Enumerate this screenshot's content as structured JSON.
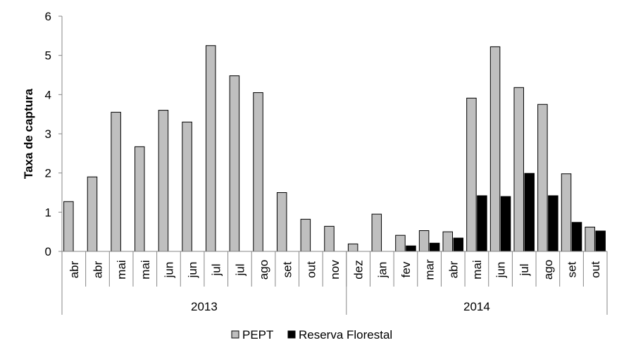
{
  "chart_data": {
    "type": "bar",
    "ylabel": "Taxa de captura",
    "ylim": [
      0,
      6
    ],
    "yticks": [
      0,
      1,
      2,
      3,
      4,
      5,
      6
    ],
    "grid": false,
    "legend_position": "bottom",
    "categories": [
      "abr",
      "abr",
      "mai",
      "mai",
      "jun",
      "jun",
      "jul",
      "jul",
      "ago",
      "set",
      "out",
      "nov",
      "dez",
      "jan",
      "fev",
      "mar",
      "abr",
      "mai",
      "jun",
      "jul",
      "ago",
      "set",
      "out"
    ],
    "groups": [
      {
        "label": "2013",
        "start": 0,
        "end": 11
      },
      {
        "label": "2014",
        "start": 12,
        "end": 22
      }
    ],
    "series": [
      {
        "name": "PEPT",
        "color": "#bfbfbf",
        "values": [
          1.27,
          1.9,
          3.55,
          2.67,
          3.6,
          3.3,
          5.25,
          4.48,
          4.05,
          1.5,
          0.82,
          0.64,
          0.19,
          0.95,
          0.41,
          0.53,
          0.5,
          3.91,
          5.22,
          4.18,
          3.75,
          1.98,
          0.62
        ]
      },
      {
        "name": "Reserva Florestal",
        "color": "#000000",
        "values": [
          null,
          null,
          null,
          null,
          null,
          null,
          null,
          null,
          null,
          null,
          null,
          null,
          null,
          null,
          0.14,
          0.21,
          0.34,
          1.42,
          1.4,
          1.99,
          1.42,
          0.74,
          0.52
        ]
      }
    ]
  }
}
